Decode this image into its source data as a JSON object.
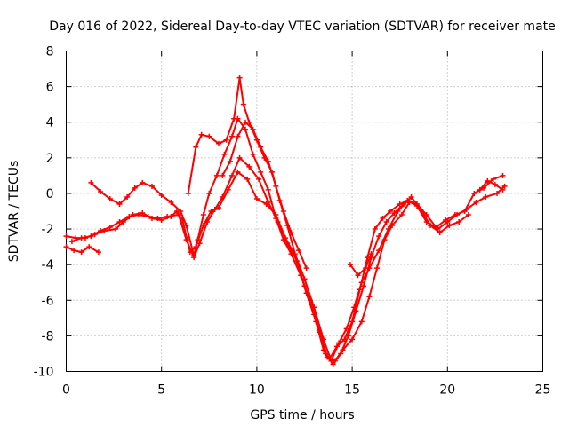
{
  "chart_data": {
    "type": "scatter",
    "title": "Day 016 of 2022, Sidereal Day-to-day VTEC variation (SDTVAR) for receiver mate",
    "xlabel": "GPS time / hours",
    "ylabel": "SDTVAR / TECUs",
    "xlim": [
      0,
      25
    ],
    "ylim": [
      -10,
      8
    ],
    "xticks": [
      "0",
      "5",
      "10",
      "15",
      "20",
      "25"
    ],
    "yticks": [
      "-10",
      "-8",
      "-6",
      "-4",
      "-2",
      "0",
      "2",
      "4",
      "6",
      "8"
    ],
    "grid": true,
    "marker": "plus",
    "color": "#ff0000",
    "series": [
      {
        "points": [
          [
            0,
            -2.4
          ],
          [
            0.5,
            -2.5
          ],
          [
            1,
            -2.5
          ],
          [
            1.5,
            -2.3
          ],
          [
            2,
            -2.1
          ],
          [
            2.6,
            -2.0
          ],
          [
            3,
            -1.6
          ],
          [
            3.5,
            -1.2
          ],
          [
            4,
            -1.1
          ],
          [
            4.5,
            -1.4
          ],
          [
            5,
            -1.5
          ],
          [
            5.5,
            -1.3
          ],
          [
            5.8,
            -1.0
          ],
          [
            6.1,
            -1.5
          ],
          [
            6.5,
            -3.3
          ],
          [
            6.8,
            -3.0
          ],
          [
            7.2,
            -1.8
          ],
          [
            7.6,
            -1.0
          ],
          [
            8,
            -0.8
          ],
          [
            8.5,
            0.2
          ],
          [
            9,
            1.2
          ],
          [
            9.5,
            0.8
          ],
          [
            10,
            -0.3
          ],
          [
            10.5,
            -0.6
          ],
          [
            11,
            -1.2
          ],
          [
            11.5,
            -2.5
          ],
          [
            12,
            -3.5
          ],
          [
            12.5,
            -5.2
          ],
          [
            13,
            -6.8
          ],
          [
            13.5,
            -8.8
          ],
          [
            13.8,
            -9.3
          ],
          [
            14.2,
            -8.6
          ],
          [
            14.6,
            -8.2
          ],
          [
            15,
            -7.2
          ],
          [
            15.4,
            -5.4
          ],
          [
            15.8,
            -3.6
          ],
          [
            16.2,
            -2.0
          ],
          [
            16.6,
            -1.4
          ],
          [
            17,
            -1.0
          ],
          [
            17.5,
            -0.6
          ],
          [
            17.9,
            -0.4
          ],
          [
            18.4,
            -0.7
          ],
          [
            18.9,
            -1.6
          ],
          [
            19.5,
            -2.0
          ],
          [
            20,
            -1.6
          ],
          [
            20.5,
            -1.2
          ],
          [
            21,
            -0.9
          ],
          [
            21.5,
            -0.5
          ],
          [
            22,
            -0.2
          ],
          [
            22.6,
            0.0
          ],
          [
            23,
            0.4
          ]
        ]
      },
      {
        "points": [
          [
            0,
            -3.0
          ],
          [
            0.4,
            -3.2
          ],
          [
            0.8,
            -3.3
          ],
          [
            1.2,
            -3.0
          ],
          [
            1.7,
            -3.3
          ]
        ]
      },
      {
        "points": [
          [
            0.3,
            -2.7
          ],
          [
            0.8,
            -2.5
          ],
          [
            1.3,
            -2.4
          ],
          [
            1.8,
            -2.1
          ],
          [
            2.3,
            -1.9
          ],
          [
            2.8,
            -1.6
          ],
          [
            3.3,
            -1.3
          ],
          [
            3.8,
            -1.2
          ],
          [
            4.3,
            -1.3
          ],
          [
            4.8,
            -1.4
          ],
          [
            5.3,
            -1.3
          ],
          [
            5.9,
            -1.2
          ],
          [
            6.3,
            -2.6
          ],
          [
            6.7,
            -3.6
          ],
          [
            7,
            -2.8
          ],
          [
            7.4,
            -1.6
          ],
          [
            7.8,
            -0.9
          ],
          [
            8.2,
            -0.2
          ],
          [
            8.7,
            1.0
          ],
          [
            9.1,
            2.0
          ],
          [
            9.6,
            1.5
          ],
          [
            10.1,
            0.8
          ],
          [
            10.6,
            -0.5
          ],
          [
            11.1,
            -1.6
          ],
          [
            11.6,
            -2.8
          ],
          [
            12.1,
            -3.8
          ],
          [
            12.6,
            -5.6
          ],
          [
            13.1,
            -7.2
          ],
          [
            13.6,
            -9.0
          ],
          [
            14,
            -9.6
          ],
          [
            14.4,
            -9.0
          ],
          [
            14.8,
            -8.0
          ],
          [
            15.2,
            -6.6
          ],
          [
            15.6,
            -5.2
          ],
          [
            16,
            -3.6
          ],
          [
            16.4,
            -2.4
          ],
          [
            16.8,
            -1.6
          ],
          [
            17.2,
            -1.1
          ],
          [
            17.7,
            -0.6
          ],
          [
            18.1,
            -0.2
          ],
          [
            18.6,
            -0.9
          ],
          [
            19.1,
            -1.8
          ],
          [
            19.6,
            -2.2
          ],
          [
            20.1,
            -1.8
          ],
          [
            20.6,
            -1.6
          ],
          [
            21.1,
            -1.2
          ]
        ]
      },
      {
        "points": [
          [
            1.3,
            0.6
          ],
          [
            1.8,
            0.1
          ],
          [
            2.3,
            -0.3
          ],
          [
            2.8,
            -0.6
          ],
          [
            3.2,
            -0.2
          ],
          [
            3.6,
            0.3
          ],
          [
            4,
            0.6
          ],
          [
            4.5,
            0.4
          ],
          [
            5,
            -0.1
          ],
          [
            5.5,
            -0.5
          ],
          [
            6,
            -1.0
          ],
          [
            6.3,
            -1.8
          ],
          [
            6.7,
            -3.5
          ],
          [
            6.9,
            -2.6
          ],
          [
            7.2,
            -1.2
          ],
          [
            7.5,
            0.0
          ],
          [
            7.9,
            1.0
          ],
          [
            8.3,
            2.2
          ],
          [
            8.7,
            3.2
          ],
          [
            9,
            4.2
          ],
          [
            9.4,
            3.6
          ],
          [
            9.8,
            2.2
          ],
          [
            10.2,
            1.2
          ],
          [
            10.6,
            0.2
          ],
          [
            11,
            -1.4
          ],
          [
            11.4,
            -2.6
          ],
          [
            11.8,
            -3.4
          ],
          [
            12.3,
            -4.6
          ],
          [
            12.8,
            -6.0
          ],
          [
            13.3,
            -7.8
          ],
          [
            13.7,
            -9.2
          ],
          [
            14.1,
            -9.4
          ],
          [
            14.5,
            -8.8
          ],
          [
            15,
            -8.2
          ],
          [
            15.5,
            -7.2
          ],
          [
            15.9,
            -5.8
          ],
          [
            16.3,
            -4.2
          ],
          [
            16.7,
            -2.6
          ],
          [
            17.1,
            -1.8
          ],
          [
            17.6,
            -1.2
          ],
          [
            18,
            -0.5
          ]
        ]
      },
      {
        "points": [
          [
            6.4,
            0.0
          ],
          [
            6.8,
            2.6
          ],
          [
            7.1,
            3.3
          ],
          [
            7.5,
            3.2
          ],
          [
            8,
            2.8
          ],
          [
            8.4,
            3.0
          ],
          [
            8.8,
            4.2
          ],
          [
            9.1,
            6.5
          ],
          [
            9.3,
            5.0
          ],
          [
            9.6,
            4.0
          ],
          [
            10,
            3.0
          ],
          [
            10.4,
            2.0
          ],
          [
            10.8,
            1.2
          ],
          [
            11.2,
            -0.4
          ],
          [
            11.6,
            -1.8
          ],
          [
            12,
            -3.4
          ],
          [
            12.5,
            -4.8
          ],
          [
            13,
            -6.4
          ],
          [
            13.5,
            -8.2
          ],
          [
            13.9,
            -9.4
          ],
          [
            14.3,
            -8.4
          ],
          [
            14.7,
            -7.6
          ],
          [
            15.1,
            -6.4
          ],
          [
            15.5,
            -5.0
          ],
          [
            15.9,
            -4.2
          ],
          [
            16.4,
            -3.2
          ],
          [
            16.9,
            -2.0
          ],
          [
            17.4,
            -1.0
          ],
          [
            17.9,
            -0.4
          ],
          [
            18.4,
            -0.6
          ],
          [
            18.9,
            -1.2
          ],
          [
            19.4,
            -1.9
          ],
          [
            19.9,
            -1.5
          ],
          [
            20.4,
            -1.2
          ],
          [
            20.9,
            -1.0
          ],
          [
            21.4,
            0.0
          ],
          [
            21.9,
            0.3
          ],
          [
            22.4,
            0.8
          ],
          [
            22.9,
            1.0
          ]
        ]
      },
      {
        "points": [
          [
            8.2,
            1.0
          ],
          [
            8.6,
            1.8
          ],
          [
            9,
            3.2
          ],
          [
            9.4,
            4.0
          ],
          [
            9.8,
            3.6
          ],
          [
            10.2,
            2.6
          ],
          [
            10.6,
            1.8
          ],
          [
            11,
            0.4
          ],
          [
            11.4,
            -1.0
          ],
          [
            11.8,
            -2.2
          ],
          [
            12.2,
            -3.2
          ],
          [
            12.6,
            -4.2
          ]
        ]
      },
      {
        "points": [
          [
            14.9,
            -4.0
          ],
          [
            15.3,
            -4.6
          ],
          [
            15.7,
            -4.2
          ],
          [
            16,
            -3.4
          ]
        ]
      },
      {
        "points": [
          [
            21.7,
            0.2
          ],
          [
            22.1,
            0.7
          ],
          [
            22.5,
            0.5
          ],
          [
            22.9,
            0.2
          ]
        ]
      }
    ]
  }
}
